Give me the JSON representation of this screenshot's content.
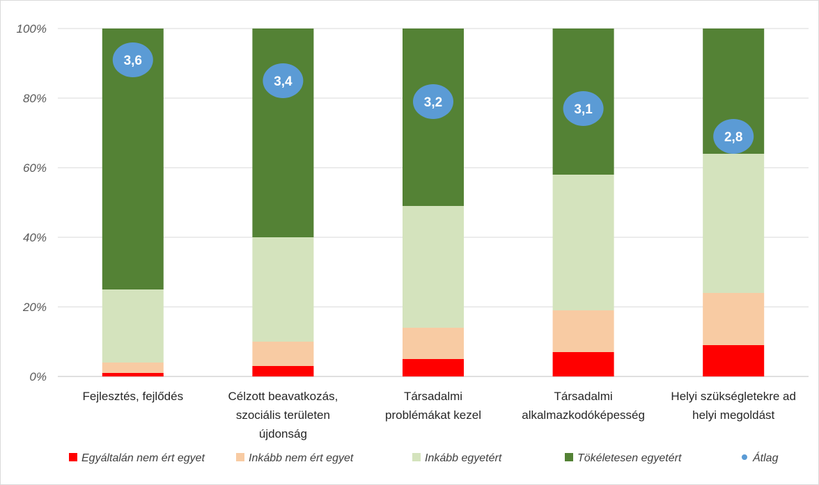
{
  "chart_data": {
    "type": "bar",
    "stacked": true,
    "percent_scale": true,
    "ylim": [
      0,
      100
    ],
    "yticks": [
      "0%",
      "20%",
      "40%",
      "60%",
      "80%",
      "100%"
    ],
    "grid": true,
    "legend_position": "bottom",
    "categories": [
      [
        "Fejlesztés, fejlődés"
      ],
      [
        "Célzott beavatkozás,",
        "szociális területen",
        "újdonság"
      ],
      [
        "Társadalmi",
        "problémákat kezel"
      ],
      [
        "Társadalmi",
        "alkalmazkodóképesség"
      ],
      [
        "Helyi szükségletekre ad",
        "helyi megoldást"
      ]
    ],
    "series": [
      {
        "name": "Egyáltalán nem ért egyet",
        "color": "#ff0000",
        "values": [
          1,
          3,
          5,
          7,
          9
        ]
      },
      {
        "name": "Inkább nem ért egyet",
        "color": "#f8cba3",
        "values": [
          3,
          7,
          9,
          12,
          15
        ]
      },
      {
        "name": "Inkább egyetért",
        "color": "#d4e3bd",
        "values": [
          21,
          30,
          35,
          39,
          40
        ]
      },
      {
        "name": "Tökéletesen egyetért",
        "color": "#548235",
        "values": [
          75,
          60,
          51,
          42,
          36
        ]
      }
    ],
    "average": {
      "name": "Átlag",
      "color": "#5b9bd5",
      "values": [
        3.6,
        3.4,
        3.2,
        3.1,
        2.8
      ],
      "labels": [
        "3,6",
        "3,4",
        "3,2",
        "3,1",
        "2,8"
      ],
      "display_percent": [
        91,
        85,
        79,
        77,
        69
      ]
    }
  }
}
